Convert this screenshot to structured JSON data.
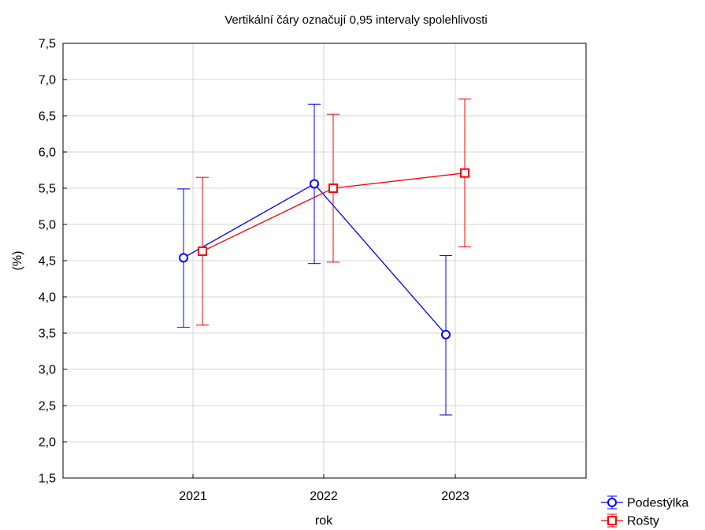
{
  "chart_data": {
    "type": "line",
    "title": "Vertikální čáry označují 0,95 intervaly spolehlivosti",
    "xlabel": "rok",
    "ylabel": "(%)",
    "categories": [
      "2021",
      "2022",
      "2023"
    ],
    "ylim": [
      1.5,
      7.5
    ],
    "yticks": [
      "1,5",
      "2,0",
      "2,5",
      "3,0",
      "3,5",
      "4,0",
      "4,5",
      "5,0",
      "5,5",
      "6,0",
      "6,5",
      "7,0",
      "7,5"
    ],
    "grid": true,
    "legend_position": "bottom-right",
    "series": [
      {
        "name": "Podestýlka",
        "color": "#0000ff",
        "marker": "circle",
        "values": [
          4.54,
          5.56,
          3.48
        ],
        "ci_lower": [
          3.58,
          4.46,
          2.37
        ],
        "ci_upper": [
          5.49,
          6.66,
          4.57
        ]
      },
      {
        "name": "Rošty",
        "color": "#ff0000",
        "marker": "square",
        "values": [
          4.63,
          5.5,
          5.71
        ],
        "ci_lower": [
          3.61,
          4.48,
          4.69
        ],
        "ci_upper": [
          5.65,
          6.52,
          6.73
        ]
      }
    ]
  }
}
